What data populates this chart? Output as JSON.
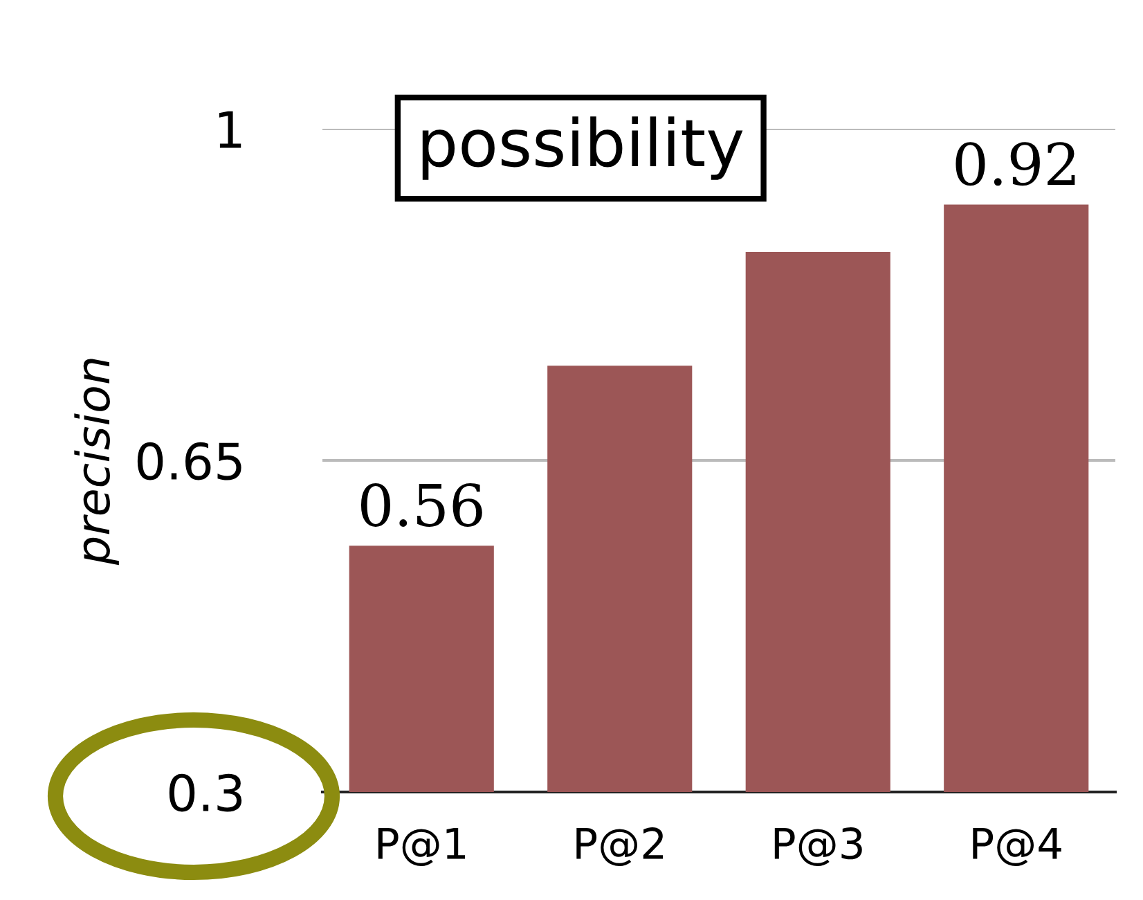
{
  "chart_data": {
    "type": "bar",
    "title": "possibility",
    "ylabel": "precision",
    "categories": [
      "P@1",
      "P@2",
      "P@3",
      "P@4"
    ],
    "values": [
      0.56,
      0.75,
      0.87,
      0.92
    ],
    "value_labels": [
      "0.56",
      null,
      null,
      "0.92"
    ],
    "color": "#9c5656",
    "ylim": [
      0.3,
      1
    ],
    "yticks": [
      0.3,
      0.65,
      1
    ],
    "grid": "y"
  }
}
